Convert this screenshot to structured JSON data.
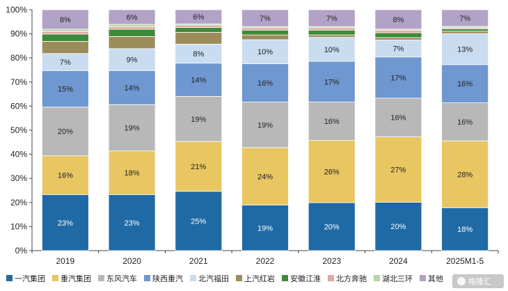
{
  "chart_data": {
    "type": "bar",
    "stacked": true,
    "title": "",
    "xlabel": "",
    "ylabel": "",
    "ylim": [
      0,
      100
    ],
    "y_ticks": [
      "0%",
      "10%",
      "20%",
      "30%",
      "40%",
      "50%",
      "60%",
      "70%",
      "80%",
      "90%",
      "100%"
    ],
    "grid": false,
    "legend_position": "bottom",
    "categories": [
      "2019",
      "2020",
      "2021",
      "2022",
      "2023",
      "2024",
      "2025M1-5"
    ],
    "series": [
      {
        "name": "一汽集团",
        "color": "#1f6aa5",
        "label_color": "#ffffff",
        "values": [
          23,
          23,
          25,
          19,
          20,
          20,
          18
        ],
        "labels": [
          "23%",
          "23%",
          "25%",
          "19%",
          "20%",
          "20%",
          "18%"
        ]
      },
      {
        "name": "重汽集团",
        "color": "#e8c662",
        "label_color": "#222222",
        "values": [
          16,
          18,
          21,
          24,
          26,
          27,
          28
        ],
        "labels": [
          "16%",
          "18%",
          "21%",
          "24%",
          "26%",
          "27%",
          "28%"
        ]
      },
      {
        "name": "东风汽车",
        "color": "#b8b8b8",
        "label_color": "#222222",
        "values": [
          20,
          19,
          19,
          19,
          16,
          16,
          16
        ],
        "labels": [
          "20%",
          "19%",
          "19%",
          "19%",
          "16%",
          "16%",
          "16%"
        ]
      },
      {
        "name": "陕西重汽",
        "color": "#6f97d0",
        "label_color": "#222222",
        "values": [
          15,
          14,
          14,
          16,
          17,
          17,
          16
        ],
        "labels": [
          "15%",
          "14%",
          "14%",
          "16%",
          "17%",
          "17%",
          "16%"
        ]
      },
      {
        "name": "北汽福田",
        "color": "#c9dcf0",
        "label_color": "#222222",
        "values": [
          7,
          9,
          8,
          10,
          10,
          7,
          13
        ],
        "labels": [
          "7%",
          "9%",
          "8%",
          "10%",
          "10%",
          "7%",
          "13%"
        ]
      },
      {
        "name": "上汽红岩",
        "color": "#9b8c5a",
        "label_color": "#222222",
        "values": [
          5,
          5,
          5,
          2,
          1,
          1,
          1
        ],
        "labels": [
          "",
          "",
          "",
          "",
          "",
          "",
          ""
        ]
      },
      {
        "name": "安徽江淮",
        "color": "#3f8a3a",
        "label_color": "#222222",
        "values": [
          3,
          3,
          2,
          2,
          2,
          2,
          1
        ],
        "labels": [
          "",
          "",
          "",
          "",
          "",
          "",
          ""
        ]
      },
      {
        "name": "北方奔驰",
        "color": "#e0a8a0",
        "label_color": "#222222",
        "values": [
          1,
          1,
          1,
          1,
          1,
          1,
          0.5
        ],
        "labels": [
          "",
          "",
          "",
          "",
          "",
          "",
          ""
        ]
      },
      {
        "name": "湖北三环",
        "color": "#b6d7a8",
        "label_color": "#222222",
        "values": [
          1,
          1,
          0.5,
          0.5,
          0.5,
          0.5,
          0.5
        ],
        "labels": [
          "",
          "",
          "",
          "",
          "",
          "",
          ""
        ]
      },
      {
        "name": "其他",
        "color": "#b3a2c7",
        "label_color": "#222222",
        "values": [
          8,
          6,
          6,
          7,
          7,
          8,
          7
        ],
        "labels": [
          "8%",
          "6%",
          "6%",
          "7%",
          "7%",
          "8%",
          "7%"
        ]
      }
    ]
  },
  "watermark": {
    "text": "格隆汇"
  }
}
